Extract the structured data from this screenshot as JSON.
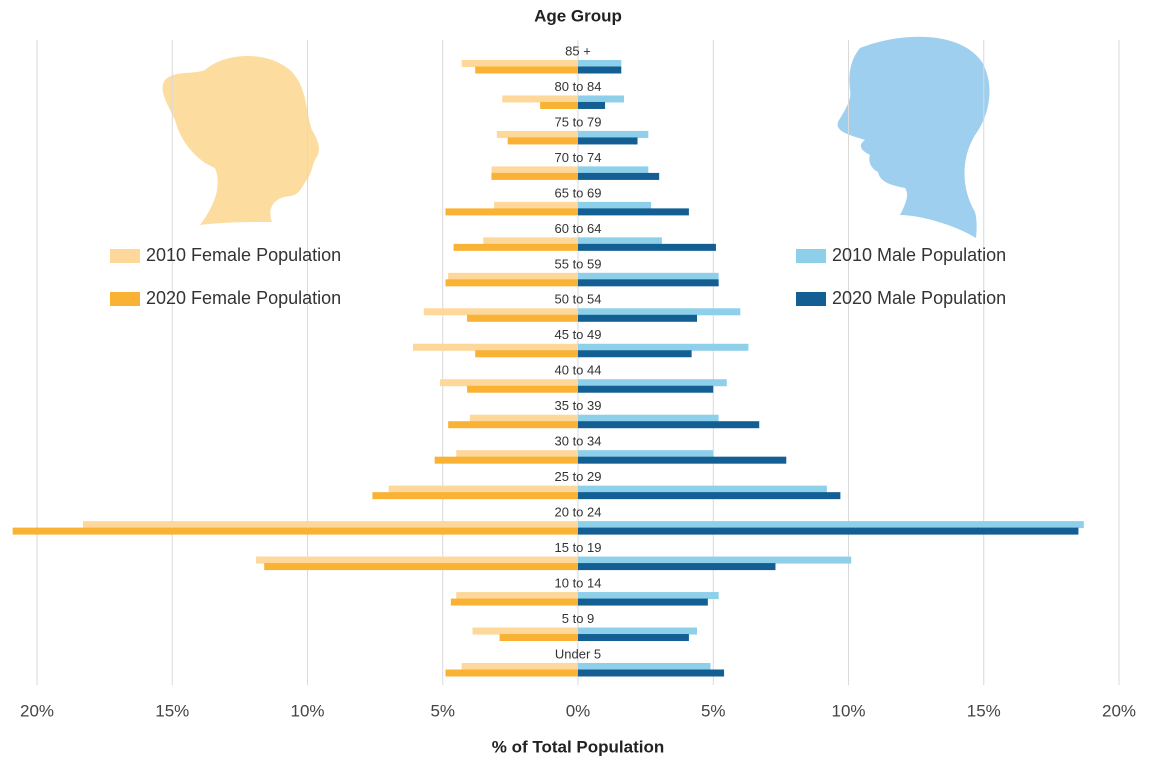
{
  "chart_data": {
    "type": "pyramid",
    "title": "Age Group",
    "x_label": "% of  Total Population",
    "categories": [
      "Under 5",
      "5 to 9",
      "10 to 14",
      "15 to 19",
      "20 to 24",
      "25 to 29",
      "30 to 34",
      "35 to 39",
      "40 to 44",
      "45 to 49",
      "50 to 54",
      "55 to 59",
      "60 to 64",
      "65 to 69",
      "70 to 74",
      "75 to 79",
      "80 to 84",
      "85 +"
    ],
    "series": [
      {
        "name": "2010 Female Population",
        "color": "#fdd89a",
        "values": [
          -4.3,
          -3.9,
          -4.5,
          -11.9,
          -18.3,
          -7.0,
          -4.5,
          -4.0,
          -5.1,
          -6.1,
          -5.7,
          -4.8,
          -3.5,
          -3.1,
          -3.2,
          -3.0,
          -2.8,
          -4.3
        ]
      },
      {
        "name": "2020 Female Population",
        "color": "#f9b233",
        "values": [
          -4.9,
          -2.9,
          -4.7,
          -11.6,
          -20.9,
          -7.6,
          -5.3,
          -4.8,
          -4.1,
          -3.8,
          -4.1,
          -4.9,
          -4.6,
          -4.9,
          -3.2,
          -2.6,
          -1.4,
          -3.8
        ]
      },
      {
        "name": "2010 Male Population",
        "color": "#8ecfea",
        "values": [
          4.9,
          4.4,
          5.2,
          10.1,
          18.7,
          9.2,
          5.0,
          5.2,
          5.5,
          6.3,
          6.0,
          5.2,
          3.1,
          2.7,
          2.6,
          2.6,
          1.7,
          1.6
        ]
      },
      {
        "name": "2020 Male Population",
        "color": "#135f93",
        "values": [
          5.4,
          4.1,
          4.8,
          7.3,
          18.5,
          9.7,
          7.7,
          6.7,
          5.0,
          4.2,
          4.4,
          5.2,
          5.1,
          4.1,
          3.0,
          2.2,
          1.0,
          1.6
        ]
      }
    ],
    "xlim": [
      -21,
      21
    ],
    "xticks": [
      {
        "value": -20,
        "label": "20%"
      },
      {
        "value": -15,
        "label": "15%"
      },
      {
        "value": -10,
        "label": "10%"
      },
      {
        "value": -5,
        "label": "5%"
      },
      {
        "value": 0,
        "label": "0%"
      },
      {
        "value": 5,
        "label": "5%"
      },
      {
        "value": 10,
        "label": "10%"
      },
      {
        "value": 15,
        "label": "15%"
      },
      {
        "value": 20,
        "label": "20%"
      }
    ],
    "grid": true
  }
}
